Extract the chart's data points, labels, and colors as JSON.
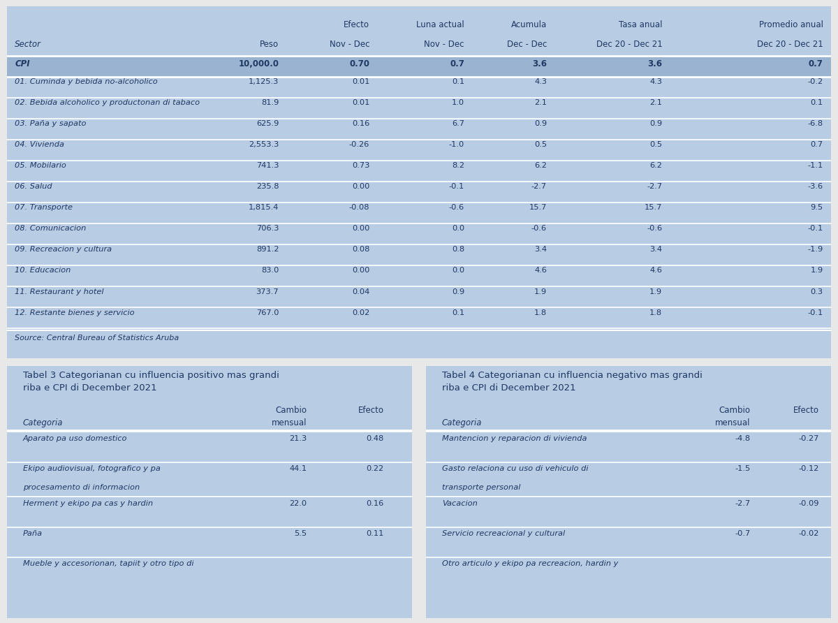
{
  "bg_color": "#b8cce4",
  "dark_row_bg": "#9ab3d0",
  "text_color": "#1f3864",
  "white_line": "#ffffff",
  "fig_bg": "#e8e8e8",
  "header_top": [
    "",
    "",
    "Efecto",
    "Luna actual",
    "Acumula",
    "Tasa anual",
    "Promedio anual"
  ],
  "header_bottom": [
    "Sector",
    "Peso",
    "Nov - Dec",
    "Nov - Dec",
    "Dec - Dec",
    "Dec 20 - Dec 21",
    "Dec 20 - Dec 21"
  ],
  "cpi_row": [
    "CPI",
    "10,000.0",
    "0.70",
    "0.7",
    "3.6",
    "3.6",
    "0.7"
  ],
  "rows": [
    [
      "01. Cuminda y bebida no-alcoholico",
      "1,125.3",
      "0.01",
      "0.1",
      "4.3",
      "4.3",
      "-0.2"
    ],
    [
      "02. Bebida alcoholico y productonan di tabaco",
      "81.9",
      "0.01",
      "1.0",
      "2.1",
      "2.1",
      "0.1"
    ],
    [
      "03. Paña y sapato",
      "625.9",
      "0.16",
      "6.7",
      "0.9",
      "0.9",
      "-6.8"
    ],
    [
      "04. Vivienda",
      "2,553.3",
      "-0.26",
      "-1.0",
      "0.5",
      "0.5",
      "0.7"
    ],
    [
      "05. Mobilario",
      "741.3",
      "0.73",
      "8.2",
      "6.2",
      "6.2",
      "-1.1"
    ],
    [
      "06. Salud",
      "235.8",
      "0.00",
      "-0.1",
      "-2.7",
      "-2.7",
      "-3.6"
    ],
    [
      "07. Transporte",
      "1,815.4",
      "-0.08",
      "-0.6",
      "15.7",
      "15.7",
      "9.5"
    ],
    [
      "08. Comunicacion",
      "706.3",
      "0.00",
      "0.0",
      "-0.6",
      "-0.6",
      "-0.1"
    ],
    [
      "09. Recreacion y cultura",
      "891.2",
      "0.08",
      "0.8",
      "3.4",
      "3.4",
      "-1.9"
    ],
    [
      "10. Educacion",
      "83.0",
      "0.00",
      "0.0",
      "4.6",
      "4.6",
      "1.9"
    ],
    [
      "11. Restaurant y hotel",
      "373.7",
      "0.04",
      "0.9",
      "1.9",
      "1.9",
      "0.3"
    ],
    [
      "12. Restante bienes y servicio",
      "767.0",
      "0.02",
      "0.1",
      "1.8",
      "1.8",
      "-0.1"
    ]
  ],
  "source_text": "Source: Central Bureau of Statistics Aruba",
  "table3_title_line1": "Tabel 3 Categorianan cu influencia positivo mas grandi",
  "table3_title_line2": "riba e CPI di December 2021",
  "table4_title_line1": "Tabel 4 Categorianan cu influencia negativo mas grandi",
  "table4_title_line2": "riba e CPI di December 2021",
  "table3_rows": [
    [
      "Aparato pa uso domestico",
      "21.3",
      "0.48"
    ],
    [
      "Ekipo audiovisual, fotografico y pa",
      "",
      ""
    ],
    [
      "procesamento di informacion",
      "44.1",
      "0.22"
    ],
    [
      "Herment y ekipo pa cas y hardin",
      "22.0",
      "0.16"
    ],
    [
      "Paña",
      "5.5",
      "0.11"
    ],
    [
      "Mueble y accesorionan, tapiit y otro tipo di",
      "",
      ""
    ]
  ],
  "table4_rows": [
    [
      "Mantencion y reparacion di vivienda",
      "-4.8",
      "-0.27"
    ],
    [
      "Gasto relaciona cu uso di vehiculo di",
      "",
      ""
    ],
    [
      "transporte personal",
      "-1.5",
      "-0.12"
    ],
    [
      "Vacacion",
      "-2.7",
      "-0.09"
    ],
    [
      "Servicio recreacional y cultural",
      "-0.7",
      "-0.02"
    ],
    [
      "Otro articulo y ekipo pa recreacion, hardin y",
      "",
      ""
    ]
  ]
}
